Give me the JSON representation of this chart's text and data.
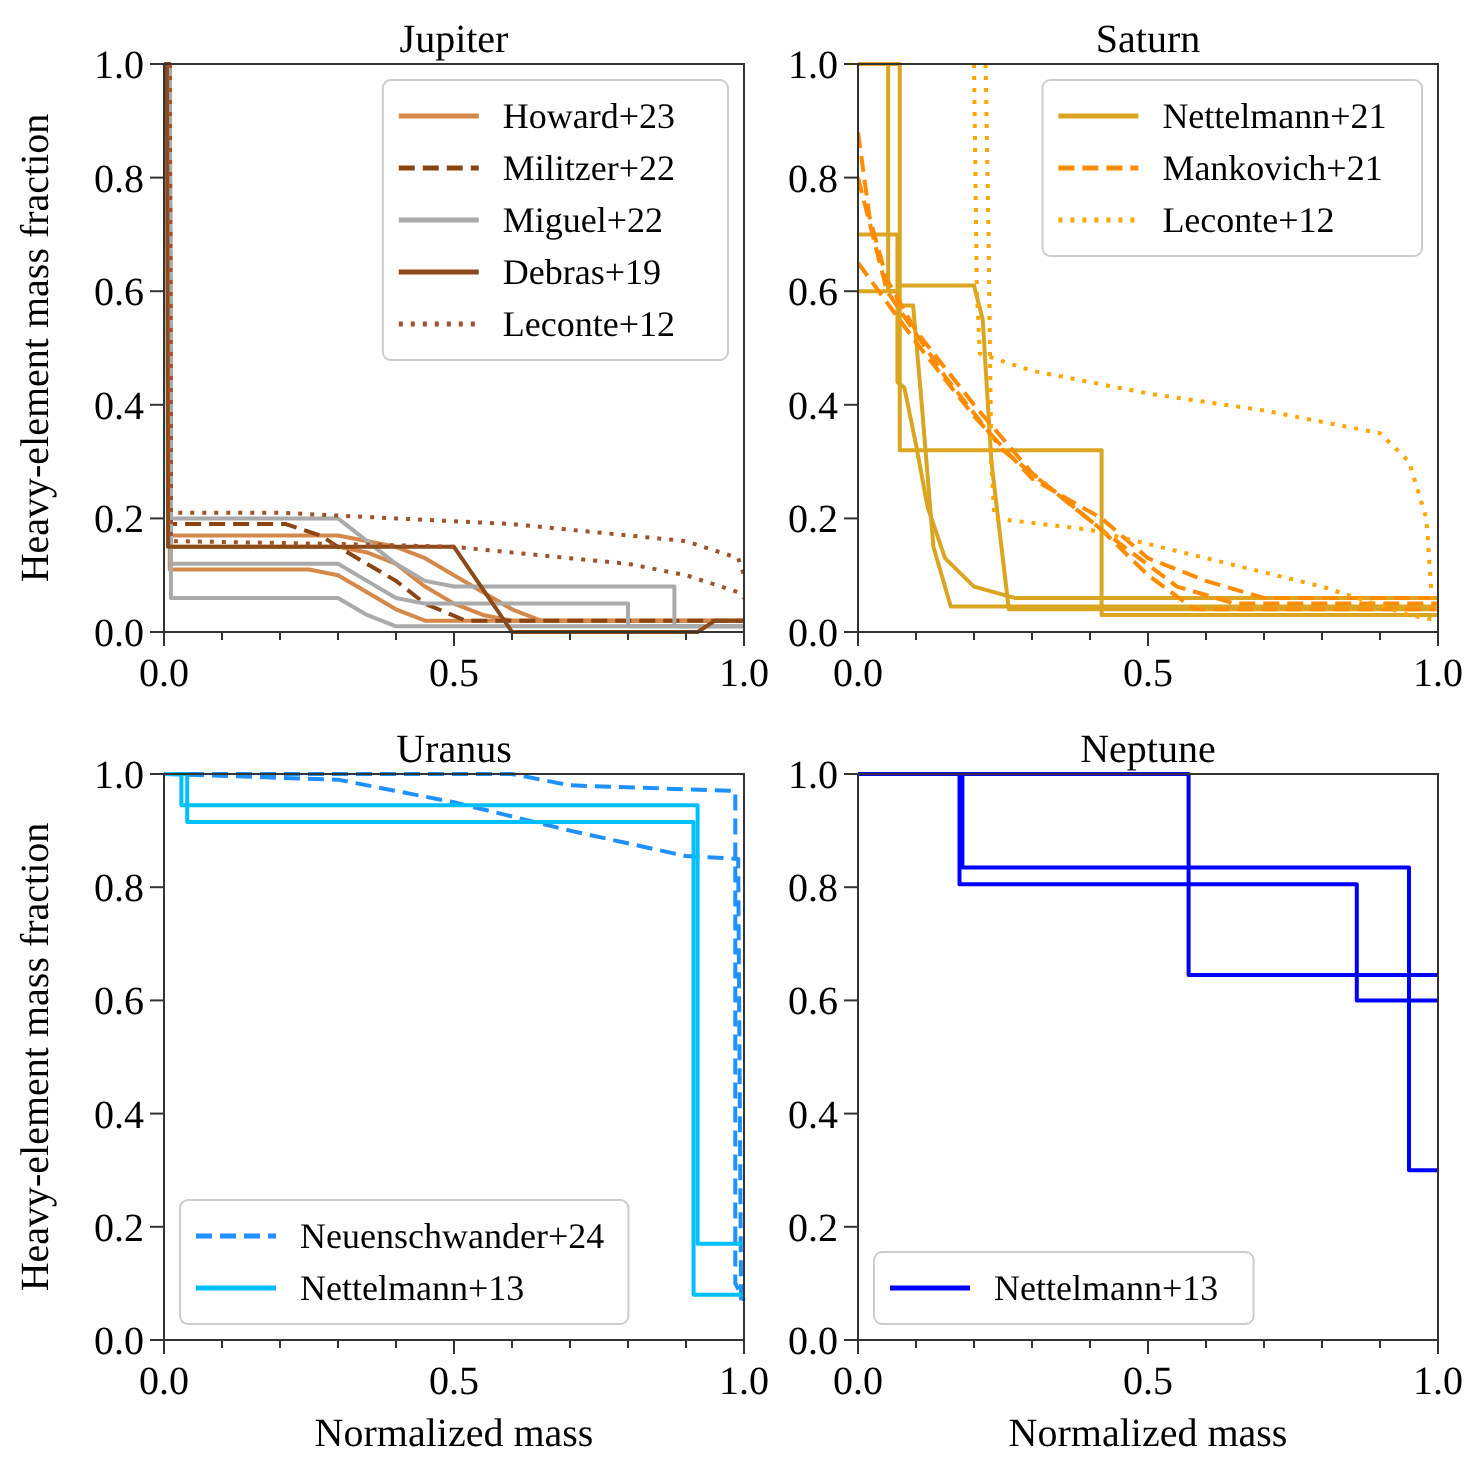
{
  "chart_data": [
    {
      "type": "line",
      "title": "Jupiter",
      "ylabel": "Heavy-element mass fraction",
      "xlim": [
        0,
        1
      ],
      "ylim": [
        0,
        1
      ],
      "xticks": [
        {
          "value": 0,
          "label": "0.0"
        },
        {
          "value": 0.1,
          "label": null
        },
        {
          "value": 0.2,
          "label": null
        },
        {
          "value": 0.3,
          "label": null
        },
        {
          "value": 0.4,
          "label": null
        },
        {
          "value": 0.5,
          "label": "0.5"
        },
        {
          "value": 0.6,
          "label": null
        },
        {
          "value": 0.7,
          "label": null
        },
        {
          "value": 0.8,
          "label": null
        },
        {
          "value": 0.9,
          "label": null
        },
        {
          "value": 1,
          "label": "1.0"
        }
      ],
      "yticks": [
        {
          "value": 0,
          "label": "0.0"
        },
        {
          "value": 0.2,
          "label": "0.2"
        },
        {
          "value": 0.4,
          "label": "0.4"
        },
        {
          "value": 0.6,
          "label": "0.6"
        },
        {
          "value": 0.8,
          "label": "0.8"
        },
        {
          "value": 1,
          "label": "1.0"
        }
      ],
      "legend": "top right",
      "series": [
        {
          "name": "Howard+23",
          "color": "#d4884a",
          "line_style": "solid",
          "x": [
            0,
            0.008,
            0.01,
            0.3,
            0.35,
            0.4,
            0.45,
            0.5,
            0.55,
            0.6,
            1
          ],
          "values": [
            1,
            1,
            0.15,
            0.15,
            0.14,
            0.12,
            0.08,
            0.05,
            0.03,
            0.02,
            0.02
          ]
        },
        {
          "color": "#d4884a",
          "line_style": "solid",
          "x": [
            0,
            0.008,
            0.01,
            0.3,
            0.4,
            0.45,
            0.5,
            0.55,
            0.6,
            0.65,
            0.7,
            1
          ],
          "values": [
            1,
            1,
            0.17,
            0.17,
            0.15,
            0.13,
            0.1,
            0.07,
            0.04,
            0.02,
            0.02,
            0.02
          ]
        },
        {
          "color": "#d4884a",
          "line_style": "solid",
          "x": [
            0,
            0.008,
            0.01,
            0.25,
            0.3,
            0.35,
            0.4,
            0.45,
            0.5,
            1
          ],
          "values": [
            1,
            1,
            0.11,
            0.11,
            0.1,
            0.07,
            0.04,
            0.02,
            0.02,
            0.02
          ]
        },
        {
          "name": "Militzer+22",
          "color": "#8b4513",
          "line_style": "dashed",
          "x": [
            0,
            0.01,
            0.012,
            0.21,
            0.27,
            0.3,
            0.4,
            0.45,
            0.52,
            1
          ],
          "values": [
            1,
            1,
            0.19,
            0.19,
            0.17,
            0.15,
            0.09,
            0.05,
            0.02,
            0.02
          ]
        },
        {
          "name": "Miguel+22",
          "color": "#aaaaaa",
          "line_style": "solid",
          "x": [
            0.01,
            0.012,
            0.3,
            0.35,
            0.4,
            0.45,
            0.5,
            0.88,
            0.88,
            1
          ],
          "values": [
            1,
            0.2,
            0.2,
            0.16,
            0.12,
            0.09,
            0.08,
            0.08,
            0.01,
            0.01
          ]
        },
        {
          "color": "#aaaaaa",
          "line_style": "solid",
          "x": [
            0.01,
            0.012,
            0.3,
            0.35,
            0.4,
            0.45,
            0.5,
            0.75,
            0.75,
            1
          ],
          "values": [
            1,
            0.06,
            0.06,
            0.03,
            0.01,
            0.01,
            0.01,
            0.01,
            0.01,
            0.01
          ]
        },
        {
          "color": "#aaaaaa",
          "line_style": "solid",
          "x": [
            0.01,
            0.012,
            0.3,
            0.35,
            0.4,
            0.45,
            0.5,
            0.8,
            0.8,
            1
          ],
          "values": [
            1,
            0.12,
            0.12,
            0.09,
            0.06,
            0.05,
            0.05,
            0.05,
            0.01,
            0.01
          ]
        },
        {
          "name": "Debras+19",
          "color": "#8b4a1a",
          "line_style": "solid",
          "x": [
            0,
            0.005,
            0.007,
            0.5,
            0.6,
            0.92,
            0.95,
            1
          ],
          "values": [
            1,
            1,
            0.15,
            0.15,
            0,
            0,
            0.02,
            0.02
          ]
        },
        {
          "name": "Leconte+12",
          "color": "#a0522d",
          "line_style": "dotted",
          "x": [
            0.01,
            0.012,
            0.2,
            0.4,
            0.6,
            0.8,
            0.9,
            0.99,
            1
          ],
          "values": [
            1,
            0.21,
            0.21,
            0.2,
            0.19,
            0.17,
            0.16,
            0.13,
            0.1
          ]
        },
        {
          "color": "#a0522d",
          "line_style": "dotted",
          "x": [
            0.01,
            0.012,
            0.3,
            0.5,
            0.7,
            0.8,
            0.9,
            0.99,
            1
          ],
          "values": [
            1,
            0.16,
            0.155,
            0.15,
            0.13,
            0.12,
            0.1,
            0.07,
            0.06
          ]
        }
      ]
    },
    {
      "type": "line",
      "title": "Saturn",
      "xlim": [
        0,
        1
      ],
      "ylim": [
        0,
        1
      ],
      "xticks": [
        {
          "value": 0,
          "label": "0.0"
        },
        {
          "value": 0.1,
          "label": null
        },
        {
          "value": 0.2,
          "label": null
        },
        {
          "value": 0.3,
          "label": null
        },
        {
          "value": 0.4,
          "label": null
        },
        {
          "value": 0.5,
          "label": "0.5"
        },
        {
          "value": 0.6,
          "label": null
        },
        {
          "value": 0.7,
          "label": null
        },
        {
          "value": 0.8,
          "label": null
        },
        {
          "value": 0.9,
          "label": null
        },
        {
          "value": 1,
          "label": "1.0"
        }
      ],
      "yticks": [
        {
          "value": 0,
          "label": "0.0"
        },
        {
          "value": 0.2,
          "label": "0.2"
        },
        {
          "value": 0.4,
          "label": "0.4"
        },
        {
          "value": 0.6,
          "label": "0.6"
        },
        {
          "value": 0.8,
          "label": "0.8"
        },
        {
          "value": 1,
          "label": "1.0"
        }
      ],
      "legend": "top right",
      "series": [
        {
          "name": "Nettelmann+21",
          "color": "#daa520",
          "line_style": "solid",
          "x": [
            0,
            0.068,
            0.068,
            0.08,
            0.1,
            0.12,
            0.15,
            0.2,
            0.27,
            1
          ],
          "values": [
            0.7,
            0.7,
            0.44,
            0.43,
            0.33,
            0.22,
            0.13,
            0.08,
            0.06,
            0.06
          ]
        },
        {
          "color": "#daa520",
          "line_style": "solid",
          "x": [
            0,
            0.07,
            0.07,
            0.095,
            0.11,
            0.13,
            0.16,
            1
          ],
          "values": [
            0.6,
            0.6,
            0.575,
            0.575,
            0.4,
            0.15,
            0.045,
            0.045
          ]
        },
        {
          "color": "#daa520",
          "line_style": "solid",
          "x": [
            0,
            0.072,
            0.072,
            0.42,
            0.42,
            1
          ],
          "values": [
            1,
            1,
            0.32,
            0.32,
            0.03,
            0.03
          ]
        },
        {
          "color": "#daa520",
          "line_style": "solid",
          "x": [
            0,
            0.052,
            0.052,
            0.07,
            0.07,
            0.2,
            0.215,
            0.23,
            0.26,
            1
          ],
          "values": [
            1,
            1,
            0.6,
            0.6,
            0.61,
            0.61,
            0.55,
            0.3,
            0.04,
            0.04
          ]
        },
        {
          "name": "Mankovich+21",
          "color": "#ff8c00",
          "line_style": "dashed",
          "x": [
            0,
            0.02,
            0.05,
            0.1,
            0.2,
            0.3,
            0.42,
            0.5,
            0.58,
            1
          ],
          "values": [
            0.88,
            0.73,
            0.62,
            0.53,
            0.4,
            0.28,
            0.18,
            0.1,
            0.04,
            0.04
          ]
        },
        {
          "color": "#ff8c00",
          "line_style": "dashed",
          "x": [
            0,
            0.05,
            0.1,
            0.2,
            0.3,
            0.42,
            0.5,
            0.6,
            0.7,
            1
          ],
          "values": [
            0.65,
            0.58,
            0.51,
            0.38,
            0.27,
            0.2,
            0.13,
            0.09,
            0.06,
            0.06
          ]
        },
        {
          "color": "#ff8c00",
          "line_style": "dashed",
          "x": [
            0,
            0.05,
            0.15,
            0.25,
            0.42,
            0.55,
            0.65,
            1
          ],
          "values": [
            0.8,
            0.6,
            0.45,
            0.32,
            0.18,
            0.08,
            0.05,
            0.05
          ]
        },
        {
          "name": "Leconte+12",
          "color": "#ffa500",
          "line_style": "dotted",
          "x": [
            0.2,
            0.205,
            0.21,
            0.3,
            0.5,
            0.7,
            0.9,
            0.95,
            0.98,
            0.99,
            1
          ],
          "values": [
            1,
            0.6,
            0.49,
            0.46,
            0.42,
            0.39,
            0.35,
            0.3,
            0.2,
            0.05,
            0.04
          ]
        },
        {
          "color": "#ffa500",
          "line_style": "dotted",
          "x": [
            0.22,
            0.225,
            0.23,
            0.235,
            0.4,
            0.6,
            0.8,
            0.95,
            1
          ],
          "values": [
            1,
            0.7,
            0.3,
            0.2,
            0.18,
            0.13,
            0.08,
            0.03,
            0.02
          ]
        }
      ]
    },
    {
      "type": "line",
      "title": "Uranus",
      "xlabel": "Normalized mass",
      "ylabel": "Heavy-element mass fraction",
      "xlim": [
        0,
        1
      ],
      "ylim": [
        0,
        1
      ],
      "xticks": [
        {
          "value": 0,
          "label": "0.0"
        },
        {
          "value": 0.1,
          "label": null
        },
        {
          "value": 0.2,
          "label": null
        },
        {
          "value": 0.3,
          "label": null
        },
        {
          "value": 0.4,
          "label": null
        },
        {
          "value": 0.5,
          "label": "0.5"
        },
        {
          "value": 0.6,
          "label": null
        },
        {
          "value": 0.7,
          "label": null
        },
        {
          "value": 0.8,
          "label": null
        },
        {
          "value": 0.9,
          "label": null
        },
        {
          "value": 1,
          "label": "1.0"
        }
      ],
      "yticks": [
        {
          "value": 0,
          "label": "0.0"
        },
        {
          "value": 0.2,
          "label": "0.2"
        },
        {
          "value": 0.4,
          "label": "0.4"
        },
        {
          "value": 0.6,
          "label": "0.6"
        },
        {
          "value": 0.8,
          "label": "0.8"
        },
        {
          "value": 1,
          "label": "1.0"
        }
      ],
      "legend": "bottom left",
      "series": [
        {
          "name": "Neuenschwander+24",
          "color": "#1e90ff",
          "line_style": "dashed",
          "x": [
            0,
            0.6,
            0.7,
            0.985,
            0.985,
            1
          ],
          "values": [
            1,
            1,
            0.98,
            0.97,
            0.1,
            0.07
          ]
        },
        {
          "color": "#1e90ff",
          "line_style": "dashed",
          "x": [
            0,
            0.3,
            0.5,
            0.7,
            0.9,
            0.99,
            0.995
          ],
          "values": [
            1,
            0.99,
            0.95,
            0.9,
            0.855,
            0.85,
            0.07
          ]
        },
        {
          "name": "Nettelmann+13",
          "color": "#00bfff",
          "line_style": "solid",
          "x": [
            0,
            0.03,
            0.03,
            0.92,
            0.92,
            1
          ],
          "values": [
            1,
            1,
            0.945,
            0.945,
            0.17,
            0.17
          ]
        },
        {
          "color": "#00bfff",
          "line_style": "solid",
          "x": [
            0,
            0.04,
            0.04,
            0.913,
            0.913,
            1
          ],
          "values": [
            1,
            1,
            0.915,
            0.915,
            0.08,
            0.08
          ]
        }
      ]
    },
    {
      "type": "line",
      "title": "Neptune",
      "xlabel": "Normalized mass",
      "xlim": [
        0,
        1
      ],
      "ylim": [
        0,
        1
      ],
      "xticks": [
        {
          "value": 0,
          "label": "0.0"
        },
        {
          "value": 0.1,
          "label": null
        },
        {
          "value": 0.2,
          "label": null
        },
        {
          "value": 0.3,
          "label": null
        },
        {
          "value": 0.4,
          "label": null
        },
        {
          "value": 0.5,
          "label": "0.5"
        },
        {
          "value": 0.6,
          "label": null
        },
        {
          "value": 0.7,
          "label": null
        },
        {
          "value": 0.8,
          "label": null
        },
        {
          "value": 0.9,
          "label": null
        },
        {
          "value": 1,
          "label": "1.0"
        }
      ],
      "yticks": [
        {
          "value": 0,
          "label": "0.0"
        },
        {
          "value": 0.2,
          "label": "0.2"
        },
        {
          "value": 0.4,
          "label": "0.4"
        },
        {
          "value": 0.6,
          "label": "0.6"
        },
        {
          "value": 0.8,
          "label": "0.8"
        },
        {
          "value": 1,
          "label": "1.0"
        }
      ],
      "legend": "bottom left",
      "series": [
        {
          "name": "Nettelmann+13",
          "color": "#0000ff",
          "line_style": "solid",
          "x": [
            0,
            0.175,
            0.175,
            0.86,
            0.86,
            1
          ],
          "values": [
            1,
            1,
            0.805,
            0.805,
            0.6,
            0.6
          ]
        },
        {
          "color": "#0000ff",
          "line_style": "solid",
          "x": [
            0,
            0.18,
            0.18,
            0.95,
            0.95,
            1
          ],
          "values": [
            1,
            1,
            0.835,
            0.835,
            0.3,
            0.3
          ]
        },
        {
          "color": "#0000ff",
          "line_style": "solid",
          "x": [
            0,
            0.57,
            0.57,
            1
          ],
          "values": [
            1,
            1,
            0.645,
            0.645
          ]
        }
      ]
    }
  ]
}
